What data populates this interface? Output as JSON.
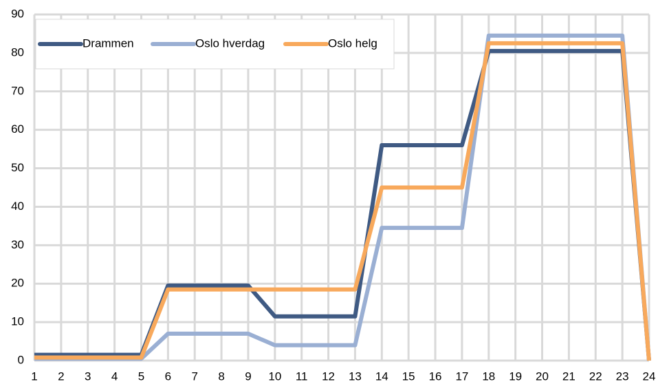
{
  "chart_data": {
    "type": "line",
    "categories": [
      "1",
      "2",
      "3",
      "4",
      "5",
      "6",
      "7",
      "8",
      "9",
      "10",
      "11",
      "12",
      "13",
      "14",
      "15",
      "16",
      "17",
      "18",
      "19",
      "20",
      "21",
      "22",
      "23",
      "24"
    ],
    "series": [
      {
        "name": "Drammen",
        "color": "#3f5a83",
        "values": [
          1.5,
          1.5,
          1.5,
          1.5,
          1.5,
          19.5,
          19.5,
          19.5,
          19.5,
          11.5,
          11.5,
          11.5,
          11.5,
          56,
          56,
          56,
          56,
          80.5,
          80.5,
          80.5,
          80.5,
          80.5,
          80.5,
          0
        ]
      },
      {
        "name": "Oslo hverdag",
        "color": "#9aafd3",
        "values": [
          0.5,
          0.5,
          0.5,
          0.5,
          0.5,
          7,
          7,
          7,
          7,
          4,
          4,
          4,
          4,
          34.5,
          34.5,
          34.5,
          34.5,
          84.5,
          84.5,
          84.5,
          84.5,
          84.5,
          84.5,
          0
        ]
      },
      {
        "name": "Oslo helg",
        "color": "#f8a95c",
        "values": [
          0.8,
          0.8,
          0.8,
          0.8,
          0.8,
          18.5,
          18.5,
          18.5,
          18.5,
          18.5,
          18.5,
          18.5,
          18.5,
          45,
          45,
          45,
          45,
          82.5,
          82.5,
          82.5,
          82.5,
          82.5,
          82.5,
          0
        ]
      }
    ],
    "ylim": [
      0,
      90
    ],
    "yticks": [
      0,
      10,
      20,
      30,
      40,
      50,
      60,
      70,
      80,
      90
    ],
    "grid": true,
    "legend": "top-left"
  }
}
